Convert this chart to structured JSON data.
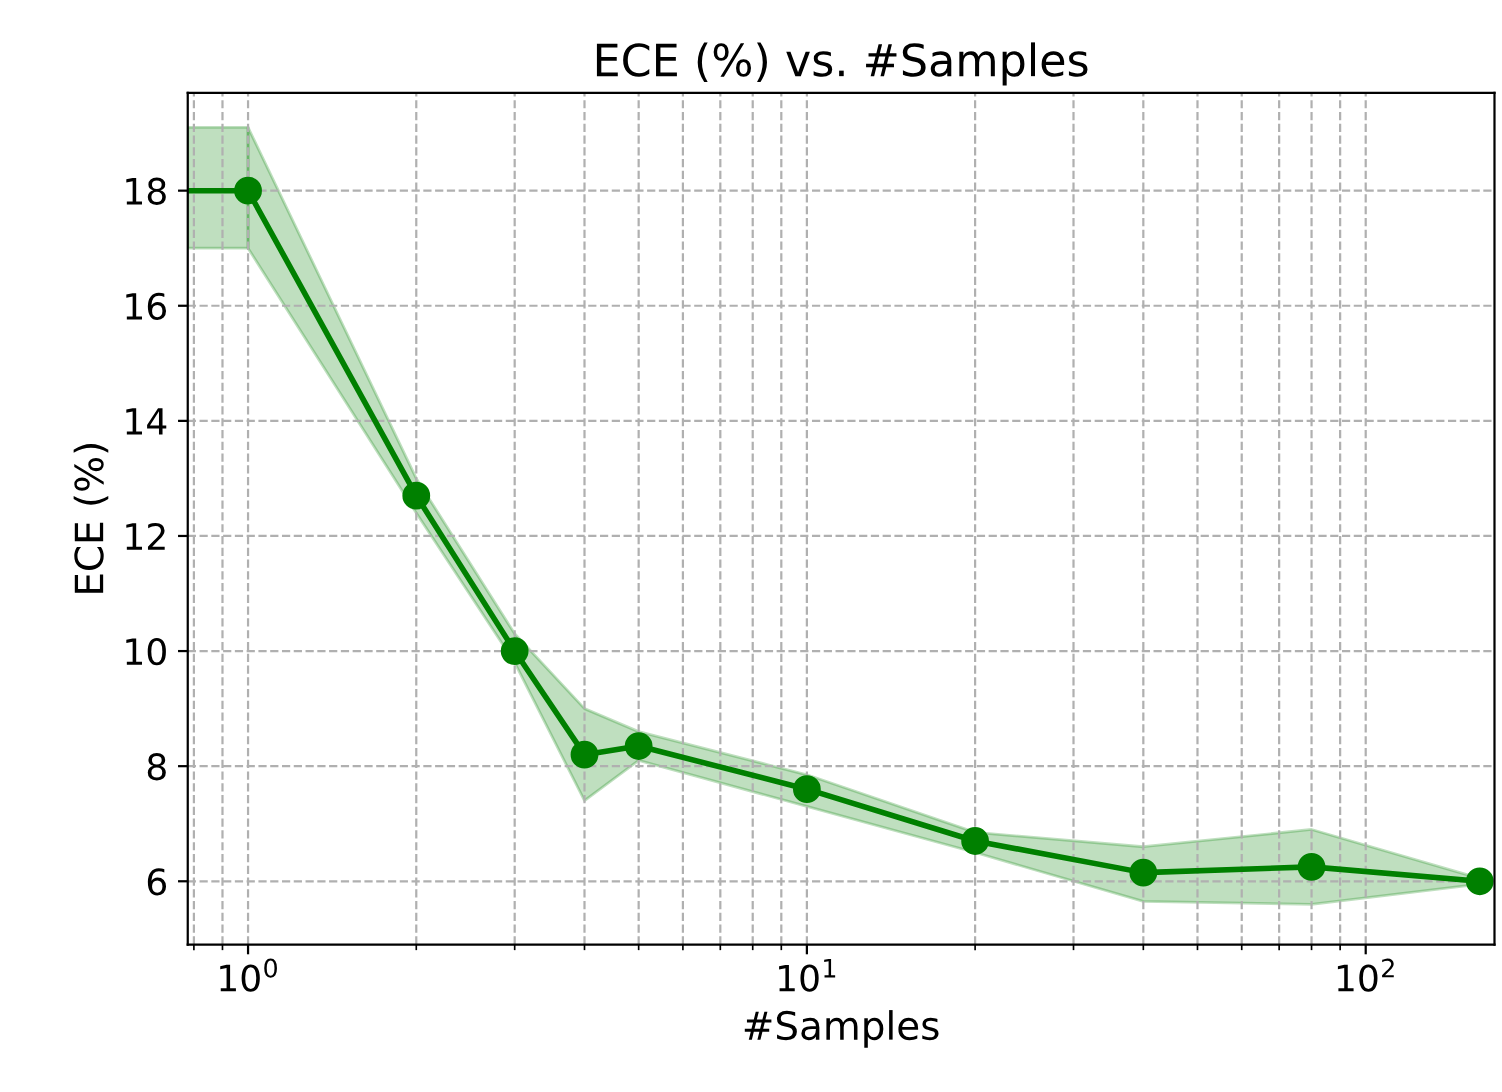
{
  "chart_data": {
    "type": "line",
    "title": "ECE (%) vs. #Samples",
    "xlabel": "#Samples",
    "ylabel": "ECE (%)",
    "log": "x",
    "grid": true,
    "xlim": [
      0.78,
      170
    ],
    "xticks": [
      {
        "value": 1,
        "label": "10$^{0}$"
      },
      {
        "value": 10,
        "label": "10$^{1}$"
      },
      {
        "value": 100,
        "label": "10$^{2}$"
      }
    ],
    "ylim": [
      4.9,
      19.7
    ],
    "yticks": [
      6,
      8,
      10,
      12,
      14,
      16,
      18
    ],
    "line_style": "solid",
    "series": [
      {
        "color": "#008000",
        "x": [
          0.78,
          1
        ],
        "values": [
          18.0,
          18.0
        ],
        "lower": [
          17.0,
          17.0
        ],
        "upper": [
          19.1,
          19.1
        ]
      },
      {
        "color": "#008000",
        "marker": "circle",
        "x": [
          1,
          2,
          3,
          4,
          5,
          10,
          20,
          40,
          80,
          160
        ],
        "values": [
          18.0,
          12.7,
          10.0,
          8.2,
          8.35,
          7.6,
          6.7,
          6.15,
          6.25,
          6.0
        ],
        "lower": [
          17.0,
          12.4,
          9.8,
          7.4,
          8.1,
          7.3,
          6.5,
          5.65,
          5.6,
          5.95
        ],
        "upper": [
          19.1,
          13.0,
          10.3,
          9.0,
          8.6,
          7.85,
          6.85,
          6.6,
          6.9,
          6.05
        ]
      }
    ]
  }
}
